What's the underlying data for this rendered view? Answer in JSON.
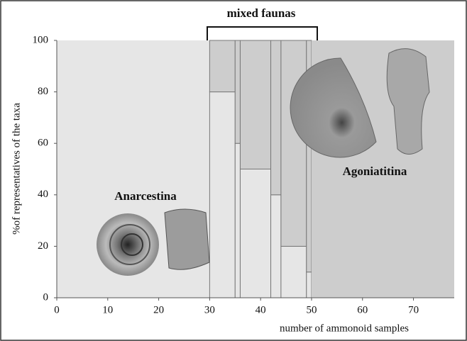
{
  "chart_data": {
    "type": "histogram",
    "bins": [
      0,
      30,
      35,
      36,
      42,
      44,
      49,
      50,
      78
    ],
    "series": [
      {
        "name": "Anarcestina",
        "color": "#e6e6e6",
        "values": [
          100,
          80,
          60,
          50,
          40,
          20,
          10,
          0
        ]
      },
      {
        "name": "Agoniatitina",
        "color": "#cdcdcd",
        "values": [
          0,
          20,
          40,
          50,
          60,
          80,
          90,
          100
        ]
      }
    ],
    "stacked": true,
    "xlabel": "number of ammonoid samples",
    "ylabel": "%of representatives of the taxa",
    "xlim": [
      0,
      78
    ],
    "xticks": [
      0,
      10,
      20,
      30,
      40,
      50,
      60,
      70
    ],
    "ylim": [
      0,
      100
    ],
    "yticks": [
      0,
      20,
      40,
      60,
      80,
      100
    ],
    "annotations": [
      "mixed faunas"
    ]
  }
}
